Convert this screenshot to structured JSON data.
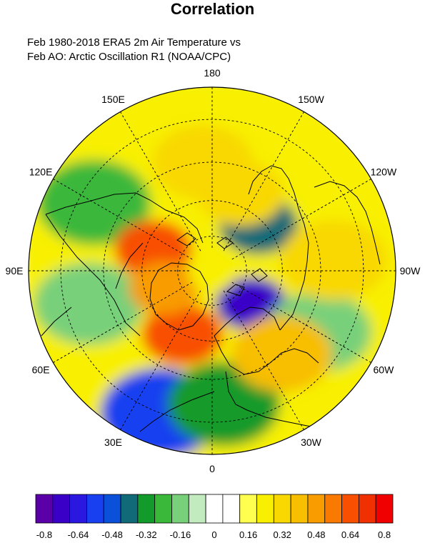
{
  "title": "Correlation",
  "subtitle_line1": "Feb 1980-2018 ERA5 2m Air Temperature vs",
  "subtitle_line2": "Feb AO: Arctic Oscillation R1 (NOAA/CPC)",
  "longitude_labels": [
    {
      "text": "180",
      "lon": 180
    },
    {
      "text": "150E",
      "lon": 150
    },
    {
      "text": "120E",
      "lon": 120
    },
    {
      "text": "90E",
      "lon": 90
    },
    {
      "text": "60E",
      "lon": 60
    },
    {
      "text": "30E",
      "lon": 30
    },
    {
      "text": "0",
      "lon": 0
    },
    {
      "text": "30W",
      "lon": -30
    },
    {
      "text": "60W",
      "lon": -60
    },
    {
      "text": "90W",
      "lon": -90
    },
    {
      "text": "120W",
      "lon": -120
    },
    {
      "text": "150W",
      "lon": -150
    }
  ],
  "colorbar": {
    "colors": [
      "#5b00a8",
      "#3a00c8",
      "#2a18e0",
      "#1840f0",
      "#0a50d8",
      "#106a78",
      "#129a2a",
      "#3ab83a",
      "#78d07a",
      "#c2ecc0",
      "#ffffff",
      "#ffffff",
      "#ffff50",
      "#f8f000",
      "#f8d800",
      "#f8be00",
      "#f89c00",
      "#f87a00",
      "#f85000",
      "#f03000",
      "#f00000"
    ],
    "tick_labels": [
      "-0.8",
      "-0.64",
      "-0.48",
      "-0.32",
      "-0.16",
      "0",
      "0.16",
      "0.32",
      "0.48",
      "0.64",
      "0.8"
    ],
    "tick_values": [
      -0.8,
      -0.64,
      -0.48,
      -0.32,
      -0.16,
      0,
      0.16,
      0.32,
      0.48,
      0.64,
      0.8
    ],
    "range": [
      -0.84,
      0.84
    ]
  },
  "map": {
    "projection": "north polar stereographic",
    "latitude_circles": [
      30,
      45,
      60,
      75
    ],
    "meridian_spacing_deg": 30,
    "regions": [
      {
        "name": "greenland-canada-negative",
        "lon": -50,
        "lat": 68,
        "value": -0.7
      },
      {
        "name": "sahara-middle-east-negative",
        "lon": 20,
        "lat": 30,
        "value": -0.6
      },
      {
        "name": "alaska-negative",
        "lon": -135,
        "lat": 62,
        "value": -0.4
      },
      {
        "name": "north-africa-negative",
        "lon": -5,
        "lat": 36,
        "value": -0.3
      },
      {
        "name": "west-atlantic-negative",
        "lon": -60,
        "lat": 40,
        "value": -0.2
      },
      {
        "name": "east-asia-negative",
        "lon": 120,
        "lat": 35,
        "value": -0.25
      },
      {
        "name": "central-asia-negative",
        "lon": 75,
        "lat": 38,
        "value": -0.2
      },
      {
        "name": "northern-europe-positive",
        "lon": 25,
        "lat": 60,
        "value": 0.65
      },
      {
        "name": "siberia-positive",
        "lon": 110,
        "lat": 63,
        "value": 0.6
      },
      {
        "name": "eurasia-arctic-positive",
        "lon": 70,
        "lat": 68,
        "value": 0.5
      },
      {
        "name": "north-pacific-positive",
        "lon": 175,
        "lat": 45,
        "value": 0.3
      },
      {
        "name": "central-atlantic-positive",
        "lon": -40,
        "lat": 45,
        "value": 0.4
      },
      {
        "name": "north-america-positive",
        "lon": -95,
        "lat": 40,
        "value": 0.35
      },
      {
        "name": "bering-positive",
        "lon": -160,
        "lat": 55,
        "value": 0.3
      },
      {
        "name": "polar-positive",
        "lon": 0,
        "lat": 88,
        "value": 0.25
      }
    ]
  }
}
